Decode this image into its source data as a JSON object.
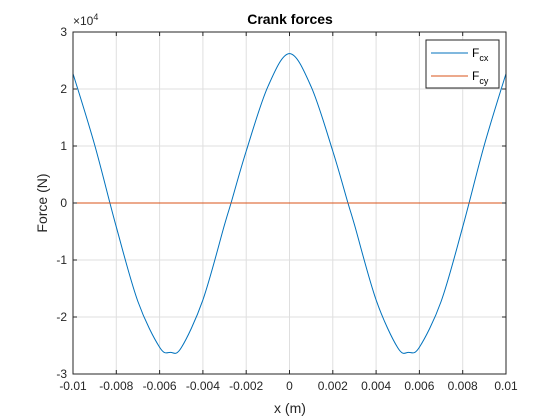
{
  "chart_data": {
    "type": "line",
    "title": "Crank forces",
    "xlabel": "x (m)",
    "ylabel": "Force (N)",
    "xlim": [
      -0.01,
      0.01
    ],
    "ylim": [
      -3,
      3
    ],
    "y_exponent_label": "×10",
    "y_exponent_power": "4",
    "x_ticks": [
      "-0.01",
      "-0.008",
      "-0.006",
      "-0.004",
      "-0.002",
      "0",
      "0.002",
      "0.004",
      "0.006",
      "0.008",
      "0.01"
    ],
    "y_ticks": [
      "-3",
      "-2",
      "-1",
      "0",
      "1",
      "2",
      "3"
    ],
    "grid": true,
    "legend_position": "top-right",
    "legend": [
      {
        "name": "F",
        "subscript": "cx",
        "color": "#0072BD"
      },
      {
        "name": "F",
        "subscript": "cy",
        "color": "#D95319"
      }
    ],
    "series": [
      {
        "name": "F_cx",
        "color": "#0072BD",
        "x": [
          -0.01,
          -0.009,
          -0.008,
          -0.007,
          -0.006,
          -0.0055,
          -0.005,
          -0.004,
          -0.003,
          -0.0027,
          -0.002,
          -0.001,
          0,
          0.001,
          0.002,
          0.0027,
          0.003,
          0.004,
          0.005,
          0.0055,
          0.006,
          0.007,
          0.008,
          0.009,
          0.01
        ],
        "y": [
          2.27,
          1.02,
          -0.42,
          -1.73,
          -2.53,
          -2.62,
          -2.54,
          -1.7,
          -0.38,
          0.0,
          0.91,
          2.04,
          2.62,
          2.04,
          0.91,
          0.0,
          -0.38,
          -1.7,
          -2.54,
          -2.62,
          -2.53,
          -1.73,
          -0.42,
          1.02,
          2.27
        ]
      },
      {
        "name": "F_cy",
        "color": "#D95319",
        "x": [
          -0.01,
          0.01
        ],
        "y": [
          0,
          0
        ]
      }
    ]
  }
}
